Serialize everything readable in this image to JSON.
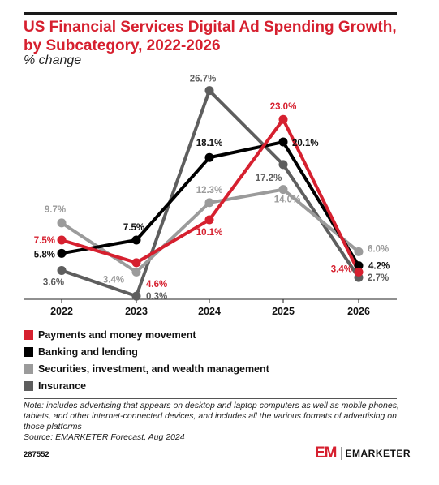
{
  "header": {
    "title": "US Financial Services Digital Ad Spending Growth, by Subcategory, 2022-2026",
    "subtitle": "% change"
  },
  "chart_data": {
    "type": "line",
    "title": "US Financial Services Digital Ad Spending Growth, by Subcategory, 2022-2026",
    "subtitle": "% change",
    "xlabel": "",
    "ylabel": "",
    "categories": [
      "2022",
      "2023",
      "2024",
      "2025",
      "2026"
    ],
    "ylim": [
      0,
      30
    ],
    "grid": false,
    "legend_position": "bottom",
    "series": [
      {
        "name": "Payments and money movement",
        "color": "#d6202f",
        "values": [
          7.5,
          4.6,
          10.1,
          23.0,
          3.4
        ],
        "labels": [
          "7.5%",
          "4.6%",
          "10.1%",
          "23.0%",
          "3.4%"
        ]
      },
      {
        "name": "Banking and lending",
        "color": "#000000",
        "values": [
          5.8,
          7.5,
          18.1,
          20.1,
          4.2
        ],
        "labels": [
          "5.8%",
          "7.5%",
          "18.1%",
          "20.1%",
          "4.2%"
        ]
      },
      {
        "name": "Securities, investment, and wealth management",
        "color": "#9b9b9b",
        "values": [
          9.7,
          3.4,
          12.3,
          14.0,
          6.0
        ],
        "labels": [
          "9.7%",
          "3.4%",
          "12.3%",
          "14.0%",
          "6.0%"
        ]
      },
      {
        "name": "Insurance",
        "color": "#5e5e5e",
        "values": [
          3.6,
          0.3,
          26.7,
          17.2,
          2.7
        ],
        "labels": [
          "3.6%",
          "0.3%",
          "26.7%",
          "17.2%",
          "2.7%"
        ]
      }
    ]
  },
  "legend": {
    "items": [
      {
        "label": "Payments and money movement",
        "color": "#d6202f"
      },
      {
        "label": "Banking and lending",
        "color": "#000000"
      },
      {
        "label": "Securities, investment, and wealth management",
        "color": "#9b9b9b"
      },
      {
        "label": "Insurance",
        "color": "#5e5e5e"
      }
    ]
  },
  "footer": {
    "note": "Note: includes advertising that appears on desktop and laptop computers as well as mobile phones, tablets, and other internet-connected devices, and includes all the various formats of advertising on those platforms",
    "source": "Source: EMARKETER Forecast, Aug 2024",
    "chart_id": "287552",
    "brand_mark": "EM",
    "brand_name": "EMARKETER"
  }
}
